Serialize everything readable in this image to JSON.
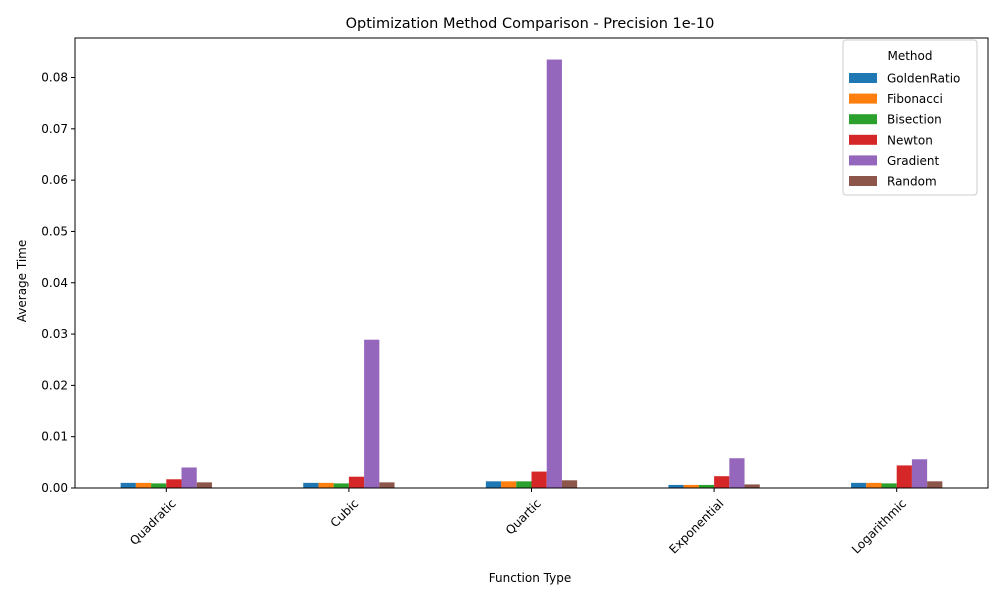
{
  "chart_data": {
    "type": "bar",
    "title": "Optimization Method Comparison - Precision 1e-10",
    "xlabel": "Function Type",
    "ylabel": "Average Time",
    "categories": [
      "Quadratic",
      "Cubic",
      "Quartic",
      "Exponential",
      "Logarithmic"
    ],
    "series": [
      {
        "name": "GoldenRatio",
        "color": "#1f77b4",
        "values": [
          0.001,
          0.001,
          0.0013,
          0.0006,
          0.001
        ]
      },
      {
        "name": "Fibonacci",
        "color": "#ff7f0e",
        "values": [
          0.001,
          0.001,
          0.0013,
          0.0006,
          0.001
        ]
      },
      {
        "name": "Bisection",
        "color": "#2ca02c",
        "values": [
          0.0009,
          0.0009,
          0.0013,
          0.0006,
          0.0009
        ]
      },
      {
        "name": "Newton",
        "color": "#d62728",
        "values": [
          0.0017,
          0.0022,
          0.0032,
          0.0023,
          0.0044
        ]
      },
      {
        "name": "Gradient",
        "color": "#9467bd",
        "values": [
          0.004,
          0.0289,
          0.0835,
          0.0058,
          0.0056
        ]
      },
      {
        "name": "Random",
        "color": "#8c564b",
        "values": [
          0.0011,
          0.0011,
          0.0015,
          0.0007,
          0.0013
        ]
      }
    ],
    "ylim": [
      0,
      0.0877
    ],
    "yticks": [
      "0.00",
      "0.01",
      "0.02",
      "0.03",
      "0.04",
      "0.05",
      "0.06",
      "0.07",
      "0.08"
    ],
    "ytick_values": [
      0,
      0.01,
      0.02,
      0.03,
      0.04,
      0.05,
      0.06,
      0.07,
      0.08
    ],
    "legend_title": "Method",
    "legend_position": "top-right",
    "grid": false
  }
}
